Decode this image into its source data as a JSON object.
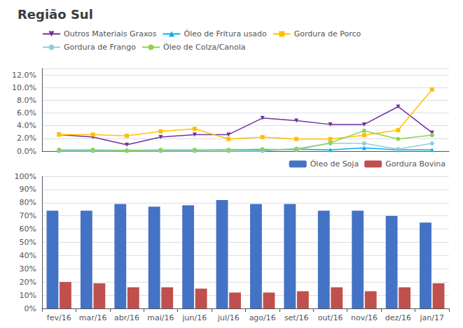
{
  "chart_data": [
    {
      "type": "line",
      "title": "Região Sul",
      "categories": [
        "fev/16",
        "mar/16",
        "abr/16",
        "mai/16",
        "jun/16",
        "jul/16",
        "ago/16",
        "set/16",
        "out/16",
        "nov/16",
        "dez/16",
        "jan/17"
      ],
      "series": [
        {
          "name": "Outros Materiais Graxos",
          "color": "#7030A0",
          "marker": "triangle_down",
          "values": [
            0.026,
            0.022,
            0.01,
            0.022,
            0.026,
            0.026,
            0.052,
            0.048,
            0.042,
            0.042,
            0.07,
            0.029
          ]
        },
        {
          "name": "Óleo de Fritura usado",
          "color": "#00B0F0",
          "marker": "triangle_up",
          "values": [
            0.001,
            0.001,
            0.001,
            0.001,
            0.001,
            0.002,
            0.002,
            0.003,
            0.002,
            0.005,
            0.002,
            0.002
          ]
        },
        {
          "name": "Gordura de Porco",
          "color": "#FFC000",
          "marker": "square",
          "values": [
            0.026,
            0.026,
            0.024,
            0.031,
            0.035,
            0.019,
            0.022,
            0.019,
            0.019,
            0.025,
            0.033,
            0.097
          ]
        },
        {
          "name": "Gordura de Frango",
          "color": "#92CDDC",
          "marker": "circle",
          "values": [
            0.0,
            0.0,
            0.0,
            0.0,
            0.0,
            0.0,
            0.0,
            0.004,
            0.012,
            0.012,
            0.003,
            0.012
          ]
        },
        {
          "name": "Óleo de Colza/Canola",
          "color": "#92D050",
          "marker": "circle",
          "values": [
            0.002,
            0.002,
            0.001,
            0.002,
            0.002,
            0.002,
            0.003,
            0.002,
            0.013,
            0.032,
            0.019,
            0.025
          ]
        }
      ],
      "ylim": [
        0.0,
        0.13
      ],
      "yticks": [
        {
          "value": 0.0,
          "label": "0.0%"
        },
        {
          "value": 0.02,
          "label": "2.0%"
        },
        {
          "value": 0.04,
          "label": "4.0%"
        },
        {
          "value": 0.06,
          "label": "6.0%"
        },
        {
          "value": 0.08,
          "label": "8.0%"
        },
        {
          "value": 0.1,
          "label": "10.0%"
        },
        {
          "value": 0.12,
          "label": "12.0%"
        }
      ],
      "grid": true,
      "legend": "upper left",
      "tick_labels": "y"
    },
    {
      "type": "bar",
      "categories": [
        "fev/16",
        "mar/16",
        "abr/16",
        "mai/16",
        "jun/16",
        "jul/16",
        "ago/16",
        "set/16",
        "out/16",
        "nov/16",
        "dez/16",
        "jan/17"
      ],
      "series": [
        {
          "name": "Óleo de Soja",
          "color": "#4472C4",
          "values": [
            0.74,
            0.74,
            0.79,
            0.77,
            0.78,
            0.82,
            0.79,
            0.79,
            0.74,
            0.74,
            0.7,
            0.65
          ]
        },
        {
          "name": "Gordura Bovina",
          "color": "#C0504D",
          "values": [
            0.2,
            0.19,
            0.16,
            0.16,
            0.15,
            0.12,
            0.12,
            0.13,
            0.16,
            0.13,
            0.16,
            0.19
          ]
        }
      ],
      "ylim": [
        0.0,
        1.0
      ],
      "yticks": [
        {
          "value": 0.0,
          "label": "0%"
        },
        {
          "value": 0.1,
          "label": "10%"
        },
        {
          "value": 0.2,
          "label": "20%"
        },
        {
          "value": 0.3,
          "label": "30%"
        },
        {
          "value": 0.4,
          "label": "40%"
        },
        {
          "value": 0.5,
          "label": "50%"
        },
        {
          "value": 0.6,
          "label": "60%"
        },
        {
          "value": 0.7,
          "label": "70%"
        },
        {
          "value": 0.8,
          "label": "80%"
        },
        {
          "value": 0.9,
          "label": "90%"
        },
        {
          "value": 1.0,
          "label": "100%"
        }
      ],
      "grid": true,
      "legend": "upper right"
    }
  ]
}
